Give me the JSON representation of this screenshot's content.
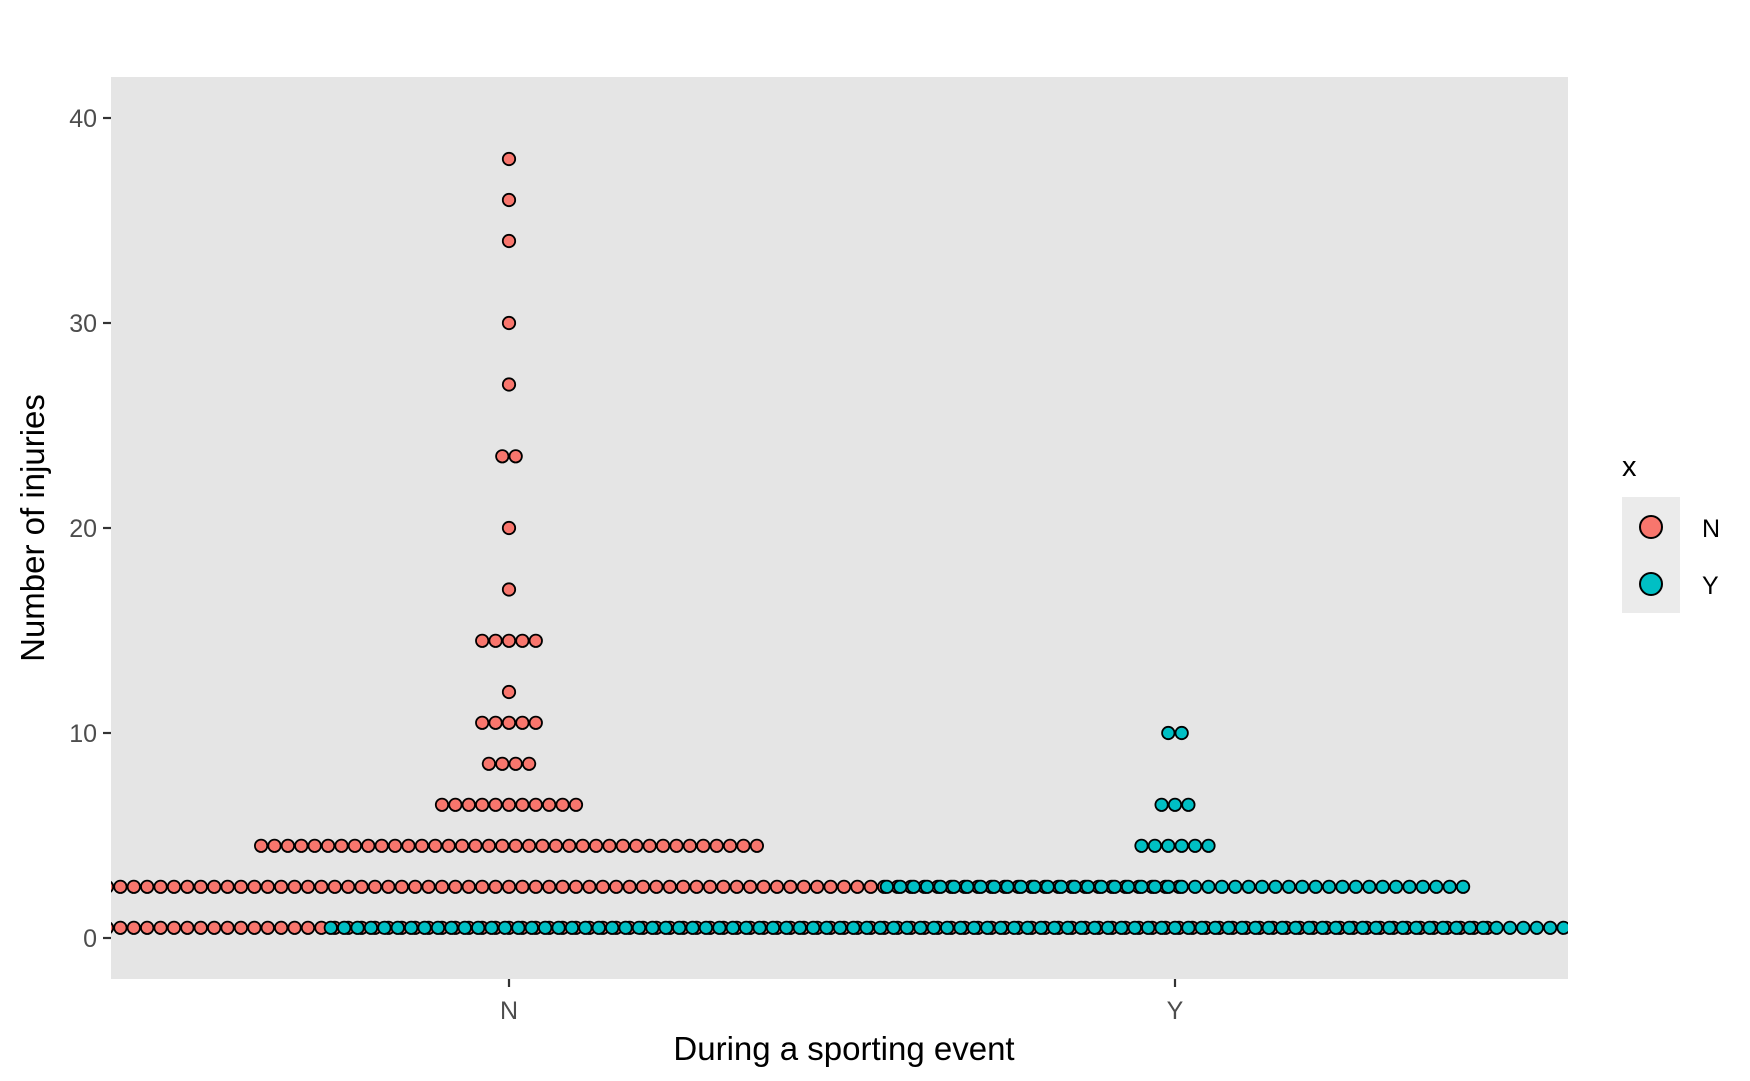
{
  "chart_data": {
    "type": "scatter",
    "subtype": "dotplot",
    "title": "",
    "xlabel": "During a sporting event",
    "ylabel": "Number of injuries",
    "categories": [
      "N",
      "Y"
    ],
    "ylim": [
      -2,
      42
    ],
    "yticks": [
      0,
      10,
      20,
      30,
      40
    ],
    "grid": false,
    "background": "#e5e5e5",
    "legend": {
      "title": "x",
      "placement": "right",
      "entries": [
        {
          "label": "N",
          "color": "#f8766d"
        },
        {
          "label": "Y",
          "color": "#00bfc4"
        }
      ]
    },
    "series": [
      {
        "name": "N",
        "color": "#f8766d",
        "bins": [
          {
            "y": 0.5,
            "count": 147
          },
          {
            "y": 2.5,
            "count": 101
          },
          {
            "y": 4.5,
            "count": 38
          },
          {
            "y": 6.5,
            "count": 11
          },
          {
            "y": 8.5,
            "count": 4
          },
          {
            "y": 10.5,
            "count": 5
          },
          {
            "y": 12,
            "count": 1
          },
          {
            "y": 14.5,
            "count": 5
          },
          {
            "y": 17,
            "count": 1
          },
          {
            "y": 20,
            "count": 1
          },
          {
            "y": 23.5,
            "count": 2
          },
          {
            "y": 27,
            "count": 1
          },
          {
            "y": 30,
            "count": 1
          },
          {
            "y": 34,
            "count": 1
          },
          {
            "y": 36,
            "count": 1
          },
          {
            "y": 38,
            "count": 1
          }
        ]
      },
      {
        "name": "Y",
        "color": "#00bfc4",
        "bins": [
          {
            "y": 0.5,
            "count": 127
          },
          {
            "y": 2.5,
            "count": 44
          },
          {
            "y": 4.5,
            "count": 6
          },
          {
            "y": 6.5,
            "count": 3
          },
          {
            "y": 10,
            "count": 2
          }
        ]
      }
    ]
  }
}
